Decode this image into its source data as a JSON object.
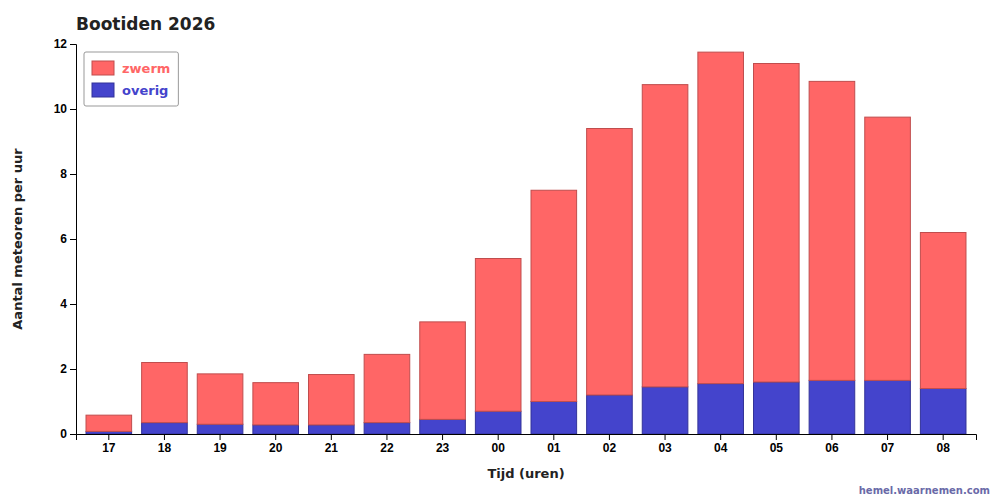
{
  "chart_data": {
    "type": "bar",
    "title": "Bootiden 2026",
    "x_label": "Tijd (uren)",
    "y_label": "Aantal meteoren per uur",
    "categories": [
      "17",
      "18",
      "19",
      "20",
      "21",
      "22",
      "23",
      "00",
      "01",
      "02",
      "03",
      "04",
      "05",
      "06",
      "07",
      "08"
    ],
    "series": [
      {
        "name": "overig",
        "color": "#4444CC",
        "values": [
          0.08,
          0.35,
          0.3,
          0.28,
          0.28,
          0.35,
          0.45,
          0.7,
          1.0,
          1.2,
          1.45,
          1.55,
          1.6,
          1.65,
          1.65,
          1.4
        ]
      },
      {
        "name": "zwerm",
        "color": "#FF6666",
        "values": [
          0.5,
          1.85,
          1.55,
          1.3,
          1.55,
          2.1,
          3.0,
          4.7,
          6.5,
          8.2,
          9.3,
          10.2,
          9.8,
          9.2,
          8.1,
          4.8
        ]
      }
    ],
    "stacked": true,
    "ylim": [
      0,
      12
    ],
    "yticks": [
      0,
      2,
      4,
      6,
      8,
      10,
      12
    ],
    "grid": false,
    "legend": "upper left",
    "annotations": [
      "hemel.waarnemen.com"
    ]
  }
}
